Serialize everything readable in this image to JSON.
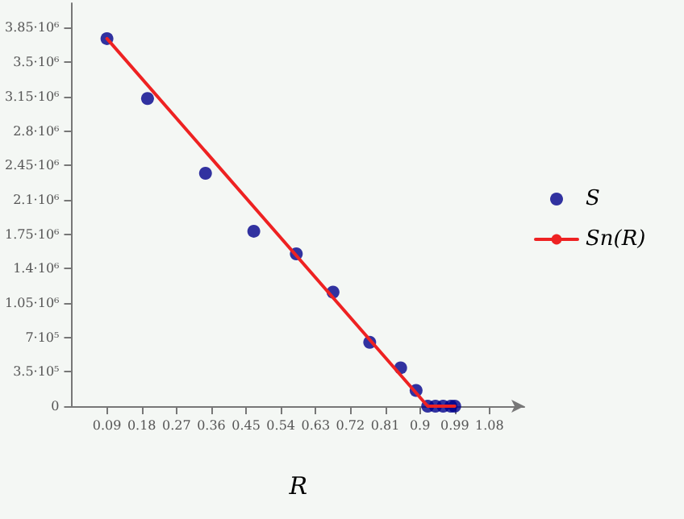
{
  "chart_data": {
    "type": "scatter",
    "xlabel": "R",
    "legend": "right",
    "grid": false,
    "marker": "circle",
    "xlim": [
      0,
      1.17
    ],
    "xticks": [
      0.09,
      0.18,
      0.27,
      0.36,
      0.45,
      0.54,
      0.63,
      0.72,
      0.81,
      0.9,
      0.99,
      1.08
    ],
    "ylim": [
      0,
      4100000
    ],
    "yticks": [
      {
        "value": 0,
        "label": "0"
      },
      {
        "value": 350000,
        "label": "3.5·10⁵"
      },
      {
        "value": 700000,
        "label": "7·10⁵"
      },
      {
        "value": 1050000,
        "label": "1.05·10⁶"
      },
      {
        "value": 1400000,
        "label": "1.4·10⁶"
      },
      {
        "value": 1750000,
        "label": "1.75·10⁶"
      },
      {
        "value": 2100000,
        "label": "2.1·10⁶"
      },
      {
        "value": 2450000,
        "label": "2.45·10⁶"
      },
      {
        "value": 2800000,
        "label": "2.8·10⁶"
      },
      {
        "value": 3150000,
        "label": "3.15·10⁶"
      },
      {
        "value": 3500000,
        "label": "3.5·10⁶"
      },
      {
        "value": 3850000,
        "label": "3.85·10⁶"
      }
    ],
    "series": [
      {
        "name": "S",
        "color": "#00008b",
        "x": [
          0.09,
          0.195,
          0.345,
          0.47,
          0.58,
          0.675,
          0.77,
          0.85,
          0.89,
          0.92,
          0.94,
          0.96,
          0.98,
          0.99
        ],
        "values": [
          3740000,
          3130000,
          2370000,
          1780000,
          1550000,
          1160000,
          650000,
          390000,
          160000,
          0,
          0,
          0,
          0,
          0
        ]
      },
      {
        "name": "Sn(R)",
        "type": "line",
        "color": "#ee2222",
        "marker": "none",
        "x": [
          0.09,
          0.92,
          0.99
        ],
        "values": [
          3740000,
          0,
          0
        ]
      }
    ]
  }
}
